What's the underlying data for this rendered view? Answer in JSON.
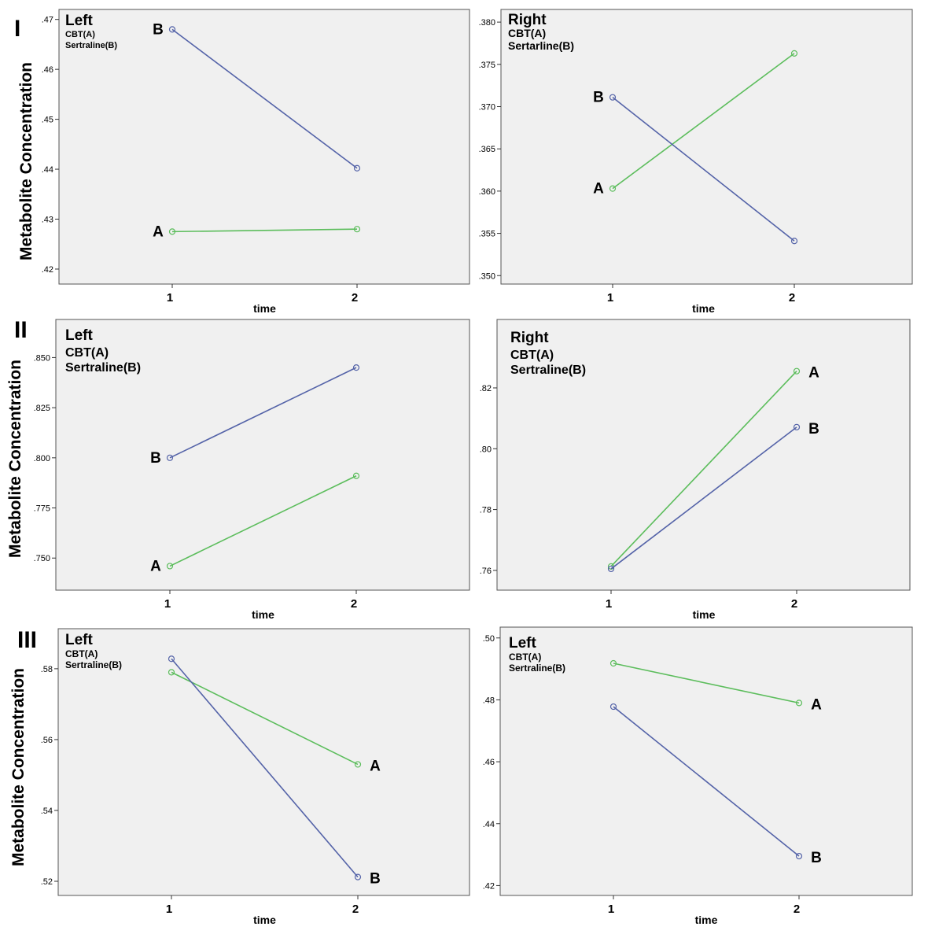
{
  "row_labels": [
    "I",
    "II",
    "III"
  ],
  "y_axis_label": "Metabolite Concentration",
  "x_axis_label": "time",
  "colors": {
    "A": "#5cbd5c",
    "B": "#5463a8",
    "panel_bg": "#f0f0f0"
  },
  "chart_data": [
    {
      "type": "line",
      "title": "Left",
      "legend_lines": [
        "CBT(A)",
        "Sertraline(B)"
      ],
      "x": [
        1,
        2
      ],
      "ylim": [
        0.417,
        0.472
      ],
      "yticks": [
        0.42,
        0.43,
        0.44,
        0.45,
        0.46,
        0.47
      ],
      "ytick_labels": [
        ".42",
        ".43",
        ".44",
        ".45",
        ".46",
        ".47"
      ],
      "series": [
        {
          "name": "A",
          "values": [
            0.4275,
            0.428
          ]
        },
        {
          "name": "B",
          "values": [
            0.468,
            0.4402
          ]
        }
      ]
    },
    {
      "type": "line",
      "title": "Right",
      "legend_lines": [
        "CBT(A)",
        "Sertarline(B)"
      ],
      "x": [
        1,
        2
      ],
      "ylim": [
        0.349,
        0.3815
      ],
      "yticks": [
        0.35,
        0.355,
        0.36,
        0.365,
        0.37,
        0.375,
        0.38
      ],
      "ytick_labels": [
        ".350",
        ".355",
        ".360",
        ".365",
        ".370",
        ".375",
        ".380"
      ],
      "series": [
        {
          "name": "A",
          "values": [
            0.3603,
            0.3763
          ]
        },
        {
          "name": "B",
          "values": [
            0.3711,
            0.3541
          ]
        }
      ]
    },
    {
      "type": "line",
      "title": "Left",
      "legend_lines": [
        "CBT(A)",
        "Sertraline(B)"
      ],
      "x": [
        1,
        2
      ],
      "ylim": [
        0.734,
        0.869
      ],
      "yticks": [
        0.75,
        0.775,
        0.8,
        0.825,
        0.85
      ],
      "ytick_labels": [
        ".750",
        ".775",
        ".800",
        ".825",
        ".850"
      ],
      "series": [
        {
          "name": "A",
          "values": [
            0.746,
            0.791
          ]
        },
        {
          "name": "B",
          "values": [
            0.8,
            0.845
          ]
        }
      ]
    },
    {
      "type": "line",
      "title": "Right",
      "legend_lines": [
        "CBT(A)",
        "Sertraline(B)"
      ],
      "x": [
        1,
        2
      ],
      "ylim": [
        0.7535,
        0.8425
      ],
      "yticks": [
        0.76,
        0.78,
        0.8,
        0.82
      ],
      "ytick_labels": [
        ".76",
        ".78",
        ".80",
        ".82"
      ],
      "series": [
        {
          "name": "A",
          "values": [
            0.7613,
            0.8255
          ]
        },
        {
          "name": "B",
          "values": [
            0.7605,
            0.8071
          ]
        }
      ]
    },
    {
      "type": "line",
      "title": "Left",
      "legend_lines": [
        "CBT(A)",
        "Sertraline(B)"
      ],
      "x": [
        1,
        2
      ],
      "ylim": [
        0.516,
        0.5913
      ],
      "yticks": [
        0.52,
        0.54,
        0.56,
        0.58
      ],
      "ytick_labels": [
        ".52",
        ".54",
        ".56",
        ".58"
      ],
      "series": [
        {
          "name": "A",
          "values": [
            0.579,
            0.553
          ]
        },
        {
          "name": "B",
          "values": [
            0.5828,
            0.5212
          ]
        }
      ]
    },
    {
      "type": "line",
      "title": "Left",
      "legend_lines": [
        "CBT(A)",
        "Sertraline(B)"
      ],
      "x": [
        1,
        2
      ],
      "ylim": [
        0.4168,
        0.5035
      ],
      "yticks": [
        0.42,
        0.44,
        0.46,
        0.48,
        0.5
      ],
      "ytick_labels": [
        ".42",
        ".44",
        ".46",
        ".48",
        ".50"
      ],
      "series": [
        {
          "name": "A",
          "values": [
            0.4918,
            0.479
          ]
        },
        {
          "name": "B",
          "values": [
            0.4778,
            0.4295
          ]
        }
      ]
    }
  ]
}
